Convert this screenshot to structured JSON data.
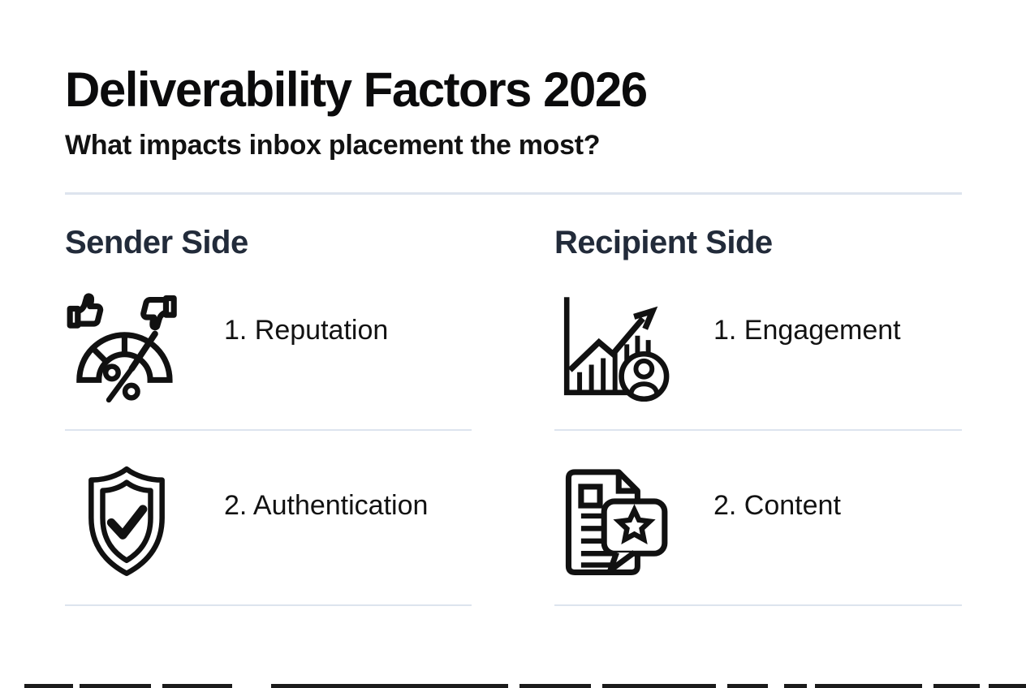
{
  "header": {
    "title": "Deliverability Factors 2026",
    "subtitle": "What impacts inbox placement the most?"
  },
  "columns": [
    {
      "heading": "Sender Side",
      "items": [
        {
          "label": "1. Reputation",
          "icon": "reputation-gauge-icon"
        },
        {
          "label": "2. Authentication",
          "icon": "shield-check-icon"
        }
      ]
    },
    {
      "heading": "Recipient Side",
      "items": [
        {
          "label": "1. Engagement",
          "icon": "engagement-growth-chart-icon"
        },
        {
          "label": "2. Content",
          "icon": "content-document-star-icon"
        }
      ]
    }
  ],
  "colors": {
    "background": "#ffffff",
    "text": "#121212",
    "heading": "#222b3a",
    "divider": "#dde4ee",
    "icon": "#111111",
    "footer_bar": "#1b1b1b"
  },
  "footer_bar_segments": [
    [
      30,
      60
    ],
    [
      98,
      88
    ],
    [
      200,
      86
    ],
    [
      334,
      292
    ],
    [
      640,
      88
    ],
    [
      742,
      140
    ],
    [
      896,
      50
    ],
    [
      966,
      28
    ],
    [
      1004,
      132
    ],
    [
      1150,
      57
    ],
    [
      1218,
      46
    ]
  ]
}
